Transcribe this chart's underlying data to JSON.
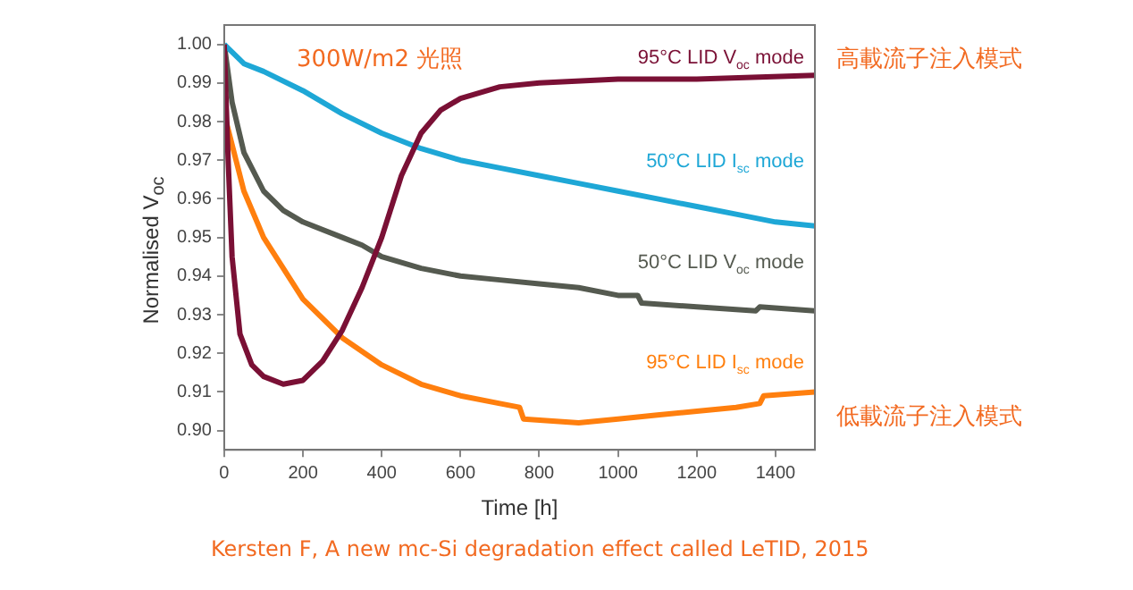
{
  "chart_data": {
    "type": "line",
    "xlabel": "Time [h]",
    "ylabel": "Normalised V$_{oc}$",
    "xlim": [
      0,
      1500
    ],
    "xticks": [
      0,
      200,
      400,
      600,
      800,
      1000,
      1200,
      1400
    ],
    "ylim": [
      0.895,
      1.005
    ],
    "yticks": [
      {
        "value": 0.9,
        "label": "0.90"
      },
      0.91,
      0.92,
      0.93,
      0.94,
      0.95,
      0.96,
      0.97,
      0.98,
      0.99,
      {
        "value": 1.0,
        "label": "1.00"
      }
    ],
    "grid": false,
    "legend": false,
    "marker": "none",
    "line_style": "solid",
    "series": [
      {
        "name": "95°C LID V$_{oc}$ mode",
        "color": "#7a1035",
        "x": [
          0,
          10,
          20,
          40,
          70,
          100,
          150,
          200,
          250,
          300,
          350,
          400,
          450,
          500,
          550,
          600,
          700,
          800,
          1000,
          1200,
          1500
        ],
        "values": [
          1.0,
          0.97,
          0.945,
          0.925,
          0.917,
          0.914,
          0.912,
          0.913,
          0.918,
          0.926,
          0.937,
          0.95,
          0.966,
          0.977,
          0.983,
          0.986,
          0.989,
          0.99,
          0.991,
          0.991,
          0.992
        ]
      },
      {
        "name": "50°C LID I$_{sc}$ mode",
        "color": "#1ea7d6",
        "x": [
          0,
          50,
          100,
          200,
          300,
          400,
          500,
          600,
          700,
          800,
          900,
          1000,
          1100,
          1200,
          1300,
          1400,
          1500
        ],
        "values": [
          1.0,
          0.995,
          0.993,
          0.988,
          0.982,
          0.977,
          0.973,
          0.97,
          0.968,
          0.966,
          0.964,
          0.962,
          0.96,
          0.958,
          0.956,
          0.954,
          0.953
        ]
      },
      {
        "name": "50°C LID V$_{oc}$ mode",
        "color": "#555a50",
        "x": [
          0,
          20,
          50,
          100,
          150,
          200,
          300,
          350,
          400,
          500,
          600,
          700,
          800,
          900,
          1000,
          1050,
          1060,
          1200,
          1350,
          1360,
          1500
        ],
        "values": [
          1.0,
          0.985,
          0.972,
          0.962,
          0.957,
          0.954,
          0.95,
          0.948,
          0.945,
          0.942,
          0.94,
          0.939,
          0.938,
          0.937,
          0.935,
          0.935,
          0.933,
          0.932,
          0.931,
          0.932,
          0.931
        ]
      },
      {
        "name": "95°C LID I$_{sc}$ mode",
        "color": "#ff7f0e",
        "x": [
          5,
          10,
          50,
          100,
          200,
          300,
          400,
          500,
          600,
          700,
          750,
          760,
          900,
          1000,
          1100,
          1200,
          1300,
          1360,
          1370,
          1500
        ],
        "values": [
          0.98,
          0.978,
          0.962,
          0.95,
          0.934,
          0.924,
          0.917,
          0.912,
          0.909,
          0.907,
          0.906,
          0.903,
          0.902,
          0.903,
          0.904,
          0.905,
          0.906,
          0.907,
          0.909,
          0.91
        ]
      }
    ],
    "annotations": [
      "300W/m2 光照",
      "高載流子注入模式",
      "低載流子注入模式",
      "Kersten F, A new mc-Si degradation effect called LeTID, 2015"
    ]
  }
}
